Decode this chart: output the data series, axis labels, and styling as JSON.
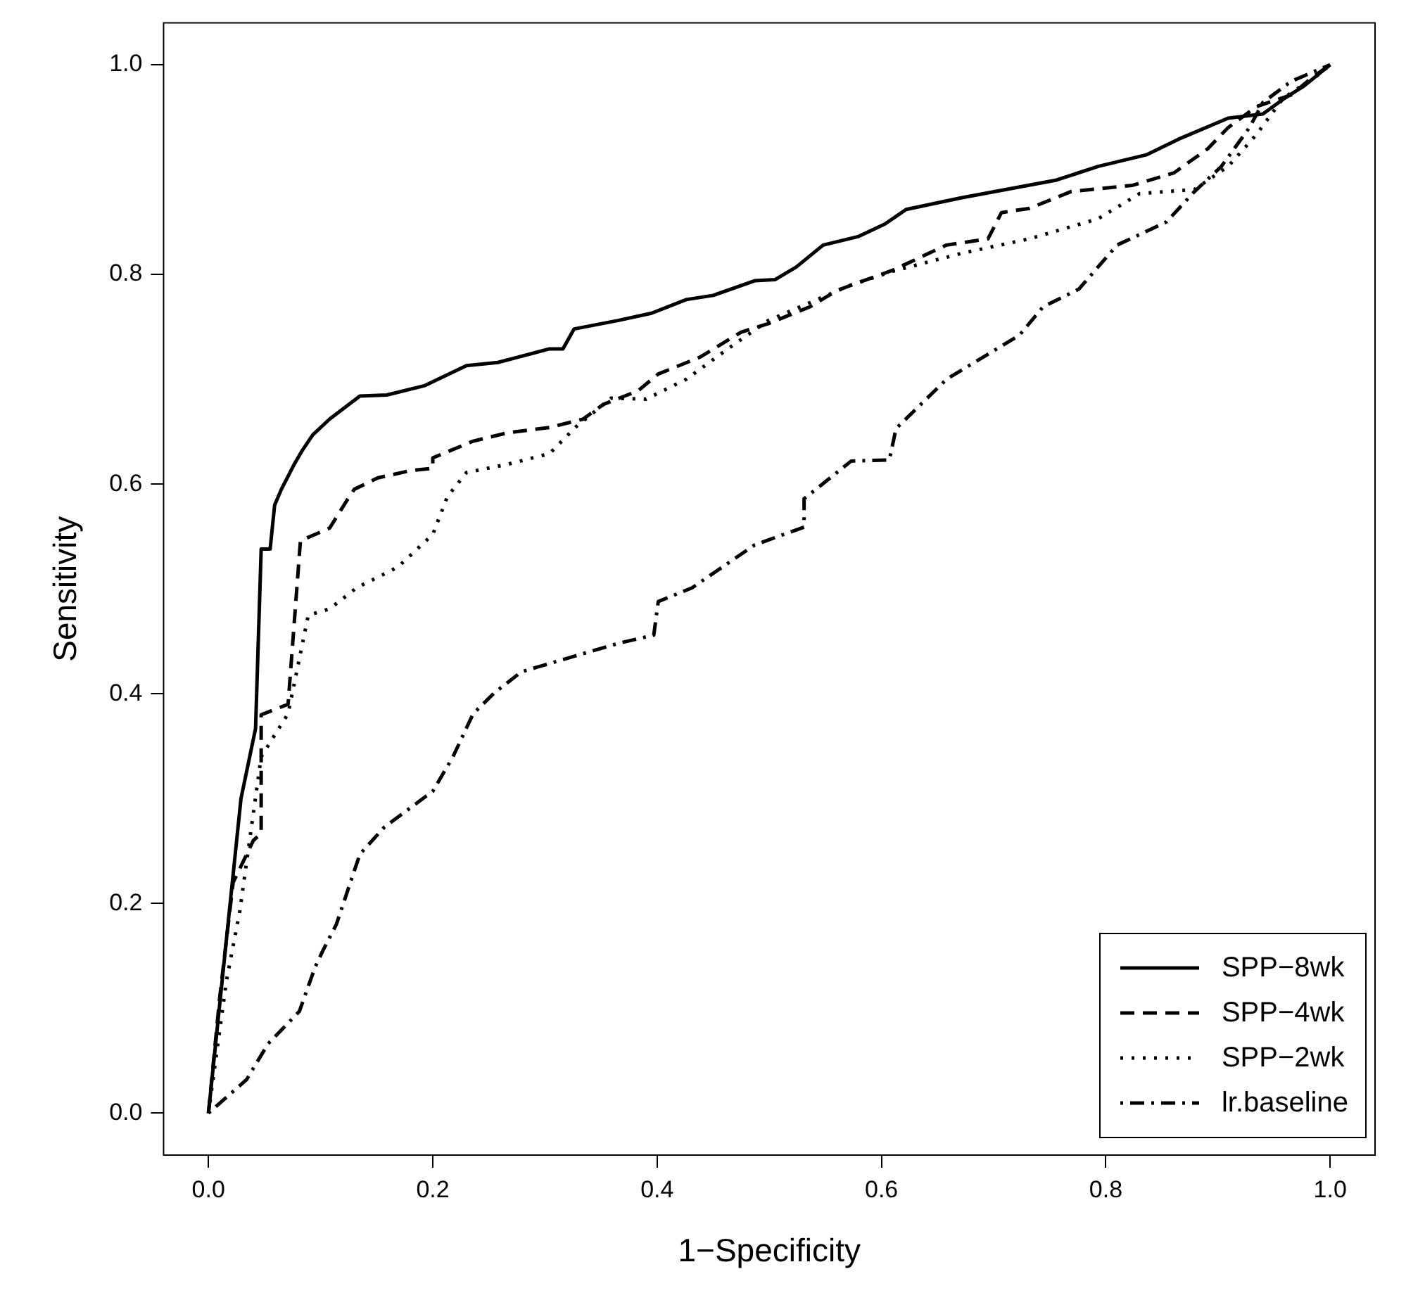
{
  "chart_data": {
    "type": "line",
    "xlabel": "1−Specificity",
    "ylabel": "Sensitivity",
    "xlim": [
      -0.04,
      1.04
    ],
    "ylim": [
      -0.04,
      1.04
    ],
    "xticks": [
      {
        "value": 0,
        "label": "0.0"
      },
      0.2,
      0.4,
      0.6,
      0.8,
      {
        "value": 1,
        "label": "1.0"
      }
    ],
    "yticks": [
      {
        "value": 0,
        "label": "0.0"
      },
      0.2,
      0.4,
      0.6,
      0.8,
      {
        "value": 1,
        "label": "1.0"
      }
    ],
    "legend": "bottom right",
    "marker": "none",
    "series": [
      {
        "name": "SPP−8wk",
        "color": "#000000",
        "line_style": "solid",
        "x": [
          0,
          0.029,
          0.042,
          0.047,
          0.055,
          0.059,
          0.065,
          0.076,
          0.083,
          0.093,
          0.108,
          0.135,
          0.159,
          0.193,
          0.23,
          0.258,
          0.304,
          0.316,
          0.326,
          0.365,
          0.395,
          0.426,
          0.45,
          0.487,
          0.505,
          0.524,
          0.548,
          0.579,
          0.603,
          0.622,
          0.671,
          0.756,
          0.793,
          0.836,
          0.867,
          0.909,
          0.94,
          0.958,
          0.977,
          1
        ],
        "values": [
          0,
          0.3,
          0.367,
          0.538,
          0.538,
          0.58,
          0.595,
          0.618,
          0.631,
          0.647,
          0.662,
          0.684,
          0.685,
          0.694,
          0.713,
          0.716,
          0.729,
          0.729,
          0.748,
          0.756,
          0.763,
          0.776,
          0.78,
          0.794,
          0.795,
          0.807,
          0.828,
          0.836,
          0.848,
          0.862,
          0.873,
          0.89,
          0.903,
          0.914,
          0.93,
          0.949,
          0.953,
          0.967,
          0.98,
          1
        ]
      },
      {
        "name": "SPP−4wk",
        "color": "#000000",
        "line_style": "dashed",
        "x": [
          0,
          0.01,
          0.022,
          0.04,
          0.047,
          0.047,
          0.071,
          0.082,
          0.108,
          0.122,
          0.13,
          0.151,
          0.181,
          0.2,
          0.2,
          0.236,
          0.267,
          0.304,
          0.334,
          0.352,
          0.383,
          0.401,
          0.438,
          0.475,
          0.499,
          0.536,
          0.561,
          0.61,
          0.658,
          0.695,
          0.707,
          0.732,
          0.769,
          0.824,
          0.861,
          0.891,
          0.909,
          0.934,
          0.965,
          0.983,
          1
        ],
        "values": [
          0,
          0.11,
          0.22,
          0.26,
          0.267,
          0.38,
          0.39,
          0.546,
          0.558,
          0.582,
          0.595,
          0.606,
          0.613,
          0.615,
          0.625,
          0.641,
          0.649,
          0.654,
          0.662,
          0.676,
          0.689,
          0.705,
          0.721,
          0.745,
          0.753,
          0.769,
          0.785,
          0.804,
          0.828,
          0.834,
          0.859,
          0.863,
          0.879,
          0.885,
          0.897,
          0.92,
          0.94,
          0.96,
          0.971,
          0.987,
          1
        ]
      },
      {
        "name": "SPP−2wk",
        "color": "#000000",
        "line_style": "dotted",
        "x": [
          0,
          0.016,
          0.028,
          0.047,
          0.071,
          0.089,
          0.108,
          0.132,
          0.169,
          0.2,
          0.213,
          0.23,
          0.267,
          0.304,
          0.328,
          0.359,
          0.39,
          0.426,
          0.463,
          0.499,
          0.536,
          0.573,
          0.61,
          0.671,
          0.732,
          0.793,
          0.83,
          0.879,
          0.909,
          0.934,
          0.958,
          0.989,
          1
        ],
        "values": [
          0,
          0.126,
          0.193,
          0.34,
          0.381,
          0.475,
          0.481,
          0.501,
          0.521,
          0.552,
          0.588,
          0.611,
          0.619,
          0.629,
          0.655,
          0.682,
          0.681,
          0.7,
          0.729,
          0.756,
          0.773,
          0.79,
          0.803,
          0.82,
          0.834,
          0.853,
          0.877,
          0.881,
          0.903,
          0.933,
          0.968,
          0.99,
          1
        ]
      },
      {
        "name": "lr.baseline",
        "color": "#000000",
        "line_style": "dashdot",
        "x": [
          0,
          0.034,
          0.053,
          0.081,
          0.095,
          0.102,
          0.114,
          0.135,
          0.157,
          0.2,
          0.218,
          0.236,
          0.255,
          0.279,
          0.365,
          0.397,
          0.401,
          0.431,
          0.487,
          0.531,
          0.531,
          0.573,
          0.607,
          0.613,
          0.658,
          0.723,
          0.744,
          0.776,
          0.81,
          0.854,
          0.879,
          0.903,
          0.928,
          0.94,
          0.965,
          1
        ],
        "values": [
          0,
          0.032,
          0.066,
          0.097,
          0.139,
          0.155,
          0.18,
          0.247,
          0.273,
          0.307,
          0.34,
          0.381,
          0.401,
          0.421,
          0.448,
          0.456,
          0.488,
          0.501,
          0.542,
          0.559,
          0.586,
          0.622,
          0.623,
          0.653,
          0.7,
          0.742,
          0.769,
          0.786,
          0.828,
          0.85,
          0.879,
          0.903,
          0.94,
          0.964,
          0.984,
          1
        ]
      }
    ]
  }
}
